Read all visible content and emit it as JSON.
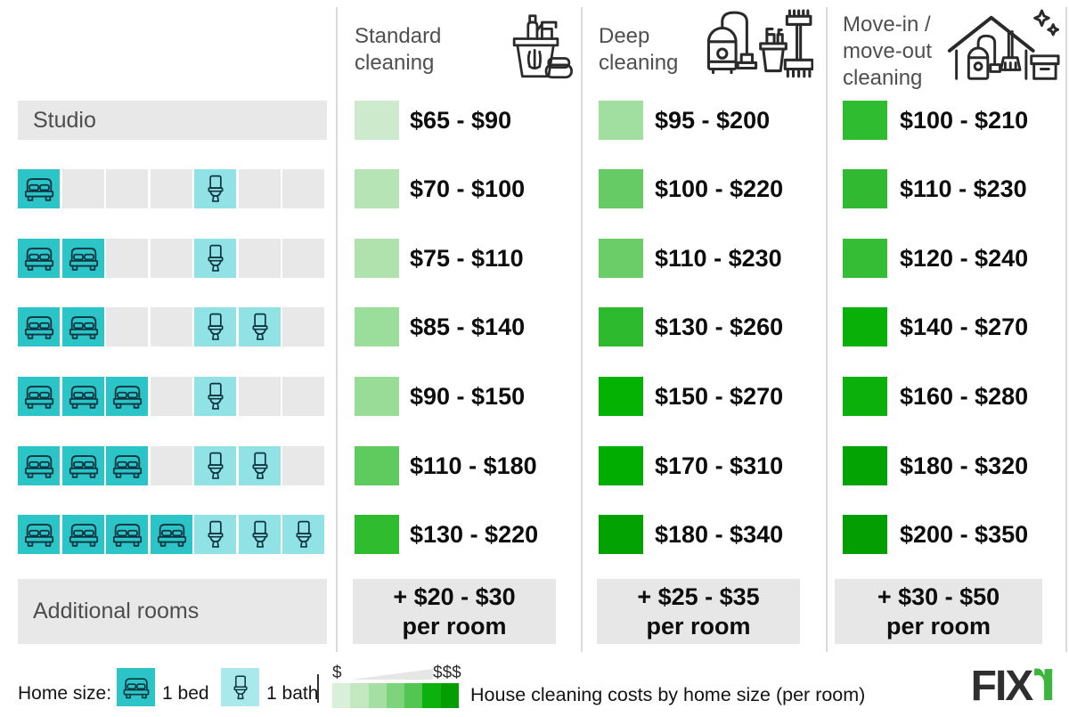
{
  "headers": {
    "standard": "Standard\ncleaning",
    "deep": "Deep\ncleaning",
    "move": "Move-in /\nmove-out\ncleaning"
  },
  "chart_data": {
    "type": "table",
    "title": "House cleaning costs by home size (per room)",
    "columns": [
      {
        "id": "standard",
        "label": "Standard cleaning",
        "icon": "cleaning-bucket-spray-sponge-icon",
        "additional_price": "+ $20 - $30",
        "additional_unit": "per room"
      },
      {
        "id": "deep",
        "label": "Deep cleaning",
        "icon": "vacuum-bucket-broom-icon",
        "additional_price": "+ $25 - $35",
        "additional_unit": "per room"
      },
      {
        "id": "move",
        "label": "Move-in / move-out cleaning",
        "icon": "house-vacuum-box-sparkle-icon",
        "additional_price": "+ $30 - $50",
        "additional_unit": "per room"
      }
    ],
    "rows": [
      {
        "home": "Studio",
        "beds": 0,
        "baths": 0,
        "prices": [
          "$65 - $90",
          "$95 - $200",
          "$100 - $210"
        ],
        "ranges_usd": [
          [
            65,
            90
          ],
          [
            95,
            200
          ],
          [
            100,
            210
          ]
        ],
        "colors": [
          "#cdeacd",
          "#a1dfa0",
          "#30bc30"
        ]
      },
      {
        "home": "1 bed, 1 bath",
        "beds": 1,
        "baths": 1,
        "prices": [
          "$70 - $100",
          "$100 - $220",
          "$110 - $230"
        ],
        "ranges_usd": [
          [
            70,
            100
          ],
          [
            100,
            220
          ],
          [
            110,
            230
          ]
        ],
        "colors": [
          "#b6e4b4",
          "#66cb64",
          "#31ba31"
        ]
      },
      {
        "home": "2 bed, 1 bath",
        "beds": 2,
        "baths": 1,
        "prices": [
          "$75 - $110",
          "$110 - $230",
          "$120 - $240"
        ],
        "ranges_usd": [
          [
            75,
            110
          ],
          [
            110,
            230
          ],
          [
            120,
            240
          ]
        ],
        "colors": [
          "#b0e2ae",
          "#6acd68",
          "#36bd36"
        ]
      },
      {
        "home": "2 bed, 2 bath",
        "beds": 2,
        "baths": 2,
        "prices": [
          "$85 - $140",
          "$130 - $260",
          "$140 - $270"
        ],
        "ranges_usd": [
          [
            85,
            140
          ],
          [
            130,
            260
          ],
          [
            140,
            270
          ]
        ],
        "colors": [
          "#9bdd9a",
          "#2eba2e",
          "#08b008"
        ]
      },
      {
        "home": "3 bed, 1 bath",
        "beds": 3,
        "baths": 1,
        "prices": [
          "$90 - $150",
          "$150 - $270",
          "$160 - $280"
        ],
        "ranges_usd": [
          [
            90,
            150
          ],
          [
            150,
            270
          ],
          [
            160,
            280
          ]
        ],
        "colors": [
          "#98dc97",
          "#03b203",
          "#0bb00b"
        ]
      },
      {
        "home": "3 bed, 2 bath",
        "beds": 3,
        "baths": 2,
        "prices": [
          "$110 - $180",
          "$170 - $310",
          "$180 - $320"
        ],
        "ranges_usd": [
          [
            110,
            180
          ],
          [
            170,
            310
          ],
          [
            180,
            320
          ]
        ],
        "colors": [
          "#5fca5e",
          "#02ad02",
          "#03a303"
        ]
      },
      {
        "home": "4 bed, 3 bath",
        "beds": 4,
        "baths": 3,
        "prices": [
          "$130 - $220",
          "$180 - $340",
          "$200 - $350"
        ],
        "ranges_usd": [
          [
            130,
            220
          ],
          [
            180,
            340
          ],
          [
            200,
            350
          ]
        ],
        "colors": [
          "#2fbc2e",
          "#02a202",
          "#029e02"
        ]
      }
    ],
    "additional_row_label": "Additional rooms",
    "legend_position": "bottom"
  },
  "footer": {
    "home_size_label": "Home size:",
    "bed_label": "1 bed",
    "bath_label": "1 bath",
    "scale_min": "$",
    "scale_max": "$$$",
    "scale_colors": [
      "#d8efd8",
      "#c1e8c0",
      "#a5dfa4",
      "#7dd47c",
      "#52c651",
      "#0db10d",
      "#029e02"
    ],
    "caption": "House cleaning costs by home size (per room)",
    "logo_dark": "FIX",
    "logo_green": "r"
  },
  "colors": {
    "bed_cell": "#2bc5c7",
    "bath_cell": "#90e2e5",
    "empty_cell": "#e8e8e8",
    "label_bar": "#e8e8e8",
    "brand_green": "#3cb53c",
    "divider": "#dbdbdb"
  }
}
